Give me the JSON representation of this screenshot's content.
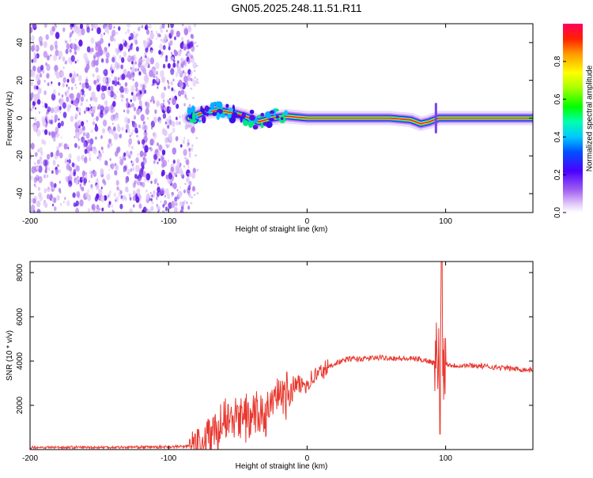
{
  "title": "GN05.2025.248.11.51.R11",
  "colors": {
    "snr_line": "#e8382f",
    "axis": "#000000",
    "cloud_light": "#e0c8f8",
    "cloud_mid": "#b27cf0",
    "cloud_dark": "#5a10e6"
  },
  "chart_data": [
    {
      "type": "heatmap",
      "title": "",
      "xlabel": "Height of straight line (km)",
      "ylabel": "Frequency (Hz)",
      "xlim": [
        -200,
        163
      ],
      "ylim": [
        -50,
        50
      ],
      "xticks": [
        -200,
        -100,
        0,
        100
      ],
      "yticks": [
        -40,
        -20,
        0,
        20,
        40
      ],
      "colorbar": {
        "label": "Normalized spectral amplitude",
        "range": [
          0,
          1
        ],
        "ticks": [
          0.0,
          0.2,
          0.4,
          0.6,
          0.8
        ],
        "colormap": "rainbow (white-violet-blue-cyan-green-yellow-red)"
      },
      "noise_region_x": [
        -200,
        -85
      ],
      "ridge": {
        "x": [
          -85,
          -75,
          -65,
          -55,
          -45,
          -35,
          -25,
          -15,
          0,
          20,
          40,
          60,
          75,
          82,
          88,
          95,
          105,
          120,
          163
        ],
        "frequency": [
          0,
          3,
          4,
          3,
          1,
          -2,
          0,
          1,
          0,
          0,
          0,
          0,
          -1,
          -3,
          -2,
          0,
          0,
          0,
          0
        ]
      }
    },
    {
      "type": "line",
      "title": "",
      "xlabel": "Height of straight line (km)",
      "ylabel": "SNR (10 * v/v)",
      "xlim": [
        -200,
        163
      ],
      "ylim": [
        0,
        8500
      ],
      "xticks": [
        -200,
        -100,
        0,
        100
      ],
      "yticks": [
        2000,
        4000,
        6000,
        8000
      ],
      "series": [
        {
          "name": "SNR",
          "x": [
            -200,
            -150,
            -100,
            -85,
            -75,
            -70,
            -60,
            -50,
            -40,
            -30,
            -25,
            -20,
            -15,
            -10,
            -5,
            0,
            5,
            10,
            20,
            30,
            40,
            50,
            60,
            70,
            80,
            88,
            92,
            95,
            96,
            97,
            98,
            100,
            105,
            110,
            120,
            140,
            160,
            163
          ],
          "y": [
            100,
            100,
            120,
            150,
            300,
            700,
            1200,
            1400,
            1500,
            1600,
            2000,
            2300,
            2500,
            2900,
            2900,
            3000,
            3300,
            3500,
            3900,
            4100,
            4100,
            4150,
            4150,
            4100,
            4100,
            4000,
            3900,
            4500,
            2000,
            7500,
            4100,
            3900,
            3800,
            3800,
            3800,
            3700,
            3600,
            3600
          ]
        }
      ]
    }
  ]
}
